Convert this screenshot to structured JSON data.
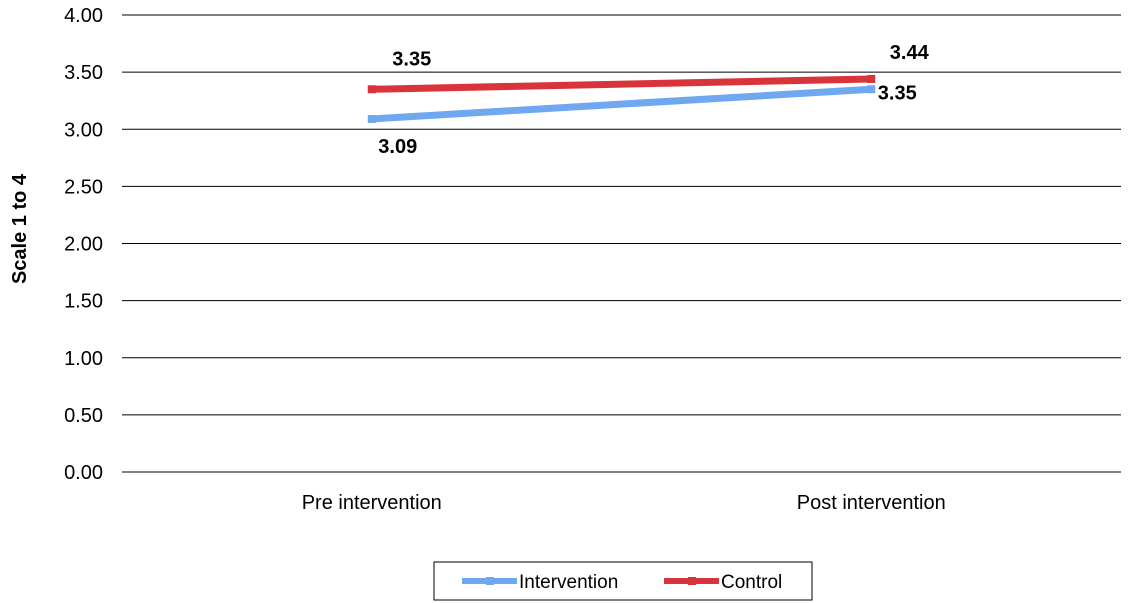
{
  "chart_data": {
    "type": "line",
    "title": "",
    "xlabel": "",
    "ylabel": "Scale 1 to 4",
    "categories": [
      "Pre intervention",
      "Post intervention"
    ],
    "ylim": [
      0,
      4
    ],
    "yticks": [
      "0.00",
      "0.50",
      "1.00",
      "1.50",
      "2.00",
      "2.50",
      "3.00",
      "3.50",
      "4.00"
    ],
    "grid": true,
    "legend_position": "bottom",
    "series": [
      {
        "name": "Intervention",
        "values": [
          3.09,
          3.35
        ],
        "labels": [
          "3.09",
          "3.35"
        ],
        "color": "#6fa8f0"
      },
      {
        "name": "Control",
        "values": [
          3.35,
          3.44
        ],
        "labels": [
          "3.35",
          "3.44"
        ],
        "color": "#d9343b"
      }
    ]
  }
}
